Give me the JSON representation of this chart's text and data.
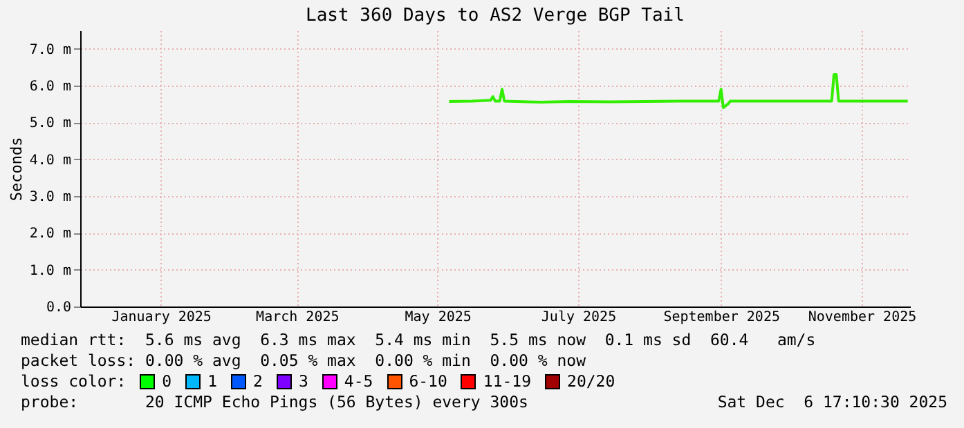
{
  "chart_data": {
    "type": "line",
    "title": "Last 360 Days to AS2 Verge BGP Tail",
    "ylabel": "Seconds",
    "x": [
      "2025-05-21",
      "2025-05-31",
      "2025-06-08",
      "2025-06-09",
      "2025-06-10",
      "2025-06-12",
      "2025-06-13",
      "2025-06-14",
      "2025-06-30",
      "2025-07-12",
      "2025-07-30",
      "2025-08-29",
      "2025-09-15",
      "2025-09-16",
      "2025-09-17",
      "2025-09-19",
      "2025-09-20",
      "2025-10-16",
      "2025-11-03",
      "2025-11-04",
      "2025-11-05",
      "2025-11-06",
      "2025-11-21",
      "2025-12-06"
    ],
    "series": [
      {
        "color": "#33ee00",
        "values": [
          5.57,
          5.58,
          5.6,
          5.7,
          5.58,
          5.58,
          5.9,
          5.58,
          5.55,
          5.57,
          5.56,
          5.58,
          5.58,
          5.9,
          5.4,
          5.5,
          5.58,
          5.58,
          5.58,
          6.3,
          6.3,
          5.58,
          5.58,
          5.58
        ]
      }
    ],
    "xlim": [
      "2024-12-12",
      "2025-12-07"
    ],
    "xticks": [
      {
        "value": "2025-01-16",
        "label": "January 2025"
      },
      {
        "value": "2025-03-16",
        "label": "March 2025"
      },
      {
        "value": "2025-05-16",
        "label": "May 2025"
      },
      {
        "value": "2025-07-16",
        "label": "July 2025"
      },
      {
        "value": "2025-09-16",
        "label": "September 2025"
      },
      {
        "value": "2025-11-16",
        "label": "November 2025"
      }
    ],
    "ylim": [
      0,
      7.5
    ],
    "yticks": [
      {
        "value": 0,
        "label": "0.0"
      },
      {
        "value": 1,
        "label": "1.0 m"
      },
      {
        "value": 2,
        "label": "2.0 m"
      },
      {
        "value": 3,
        "label": "3.0 m"
      },
      {
        "value": 4,
        "label": "4.0 m"
      },
      {
        "value": 5,
        "label": "5.0 m"
      },
      {
        "value": 6,
        "label": "6.0 m"
      },
      {
        "value": 7,
        "label": "7.0 m"
      }
    ],
    "grid": true,
    "marker": "none",
    "line_style": "solid",
    "annotations": [
      "median rtt:  5.6 ms avg  6.3 ms max  5.4 ms min  5.5 ms now  0.1 ms sd  60.4   am/s",
      "packet loss: 0.00 % avg  0.05 % max  0.00 % min  0.00 % now",
      "loss color:",
      "0",
      "1",
      "2",
      "3",
      "4-5",
      "6-10",
      "11-19",
      "20/20",
      "probe:       20 ICMP Echo Pings (56 Bytes) every 300s",
      "Sat Dec  6 17:10:30 2025"
    ]
  }
}
